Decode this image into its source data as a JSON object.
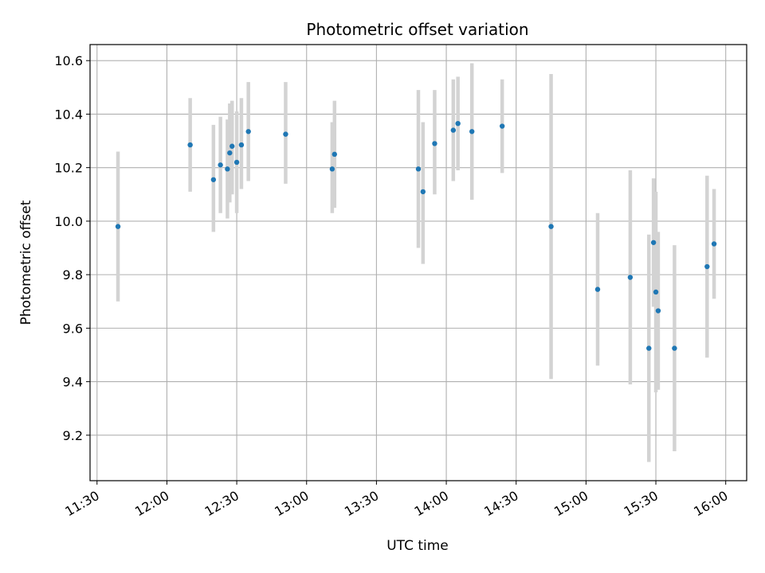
{
  "chart_data": {
    "type": "scatter",
    "title": "Photometric offset variation",
    "xlabel": "UTC time",
    "ylabel": "Photometric offset",
    "xlim": [
      "11:27",
      "16:09"
    ],
    "ylim": [
      9.03,
      10.66
    ],
    "x_ticks": [
      "11:30",
      "12:00",
      "12:30",
      "13:00",
      "13:30",
      "14:00",
      "14:30",
      "15:00",
      "15:30",
      "16:00"
    ],
    "y_ticks": [
      9.2,
      9.4,
      9.6,
      9.8,
      10.0,
      10.2,
      10.4,
      10.6
    ],
    "grid": true,
    "colors": {
      "marker": "#1f77b4",
      "errorbar": "#d3d3d3",
      "grid": "#b0b0b0"
    },
    "points": [
      {
        "x": "11:39",
        "y": 9.98,
        "ylow": 9.7,
        "yhigh": 10.26
      },
      {
        "x": "12:10",
        "y": 10.285,
        "ylow": 10.11,
        "yhigh": 10.46
      },
      {
        "x": "12:20",
        "y": 10.155,
        "ylow": 9.96,
        "yhigh": 10.36
      },
      {
        "x": "12:23",
        "y": 10.21,
        "ylow": 10.03,
        "yhigh": 10.39
      },
      {
        "x": "12:26",
        "y": 10.195,
        "ylow": 10.01,
        "yhigh": 10.38
      },
      {
        "x": "12:27",
        "y": 10.255,
        "ylow": 10.07,
        "yhigh": 10.44
      },
      {
        "x": "12:28",
        "y": 10.28,
        "ylow": 10.1,
        "yhigh": 10.45
      },
      {
        "x": "12:30",
        "y": 10.22,
        "ylow": 10.03,
        "yhigh": 10.41
      },
      {
        "x": "12:32",
        "y": 10.285,
        "ylow": 10.12,
        "yhigh": 10.46
      },
      {
        "x": "12:35",
        "y": 10.335,
        "ylow": 10.15,
        "yhigh": 10.52
      },
      {
        "x": "12:51",
        "y": 10.325,
        "ylow": 10.14,
        "yhigh": 10.52
      },
      {
        "x": "13:11",
        "y": 10.195,
        "ylow": 10.03,
        "yhigh": 10.37
      },
      {
        "x": "13:12",
        "y": 10.25,
        "ylow": 10.05,
        "yhigh": 10.45
      },
      {
        "x": "13:48",
        "y": 10.195,
        "ylow": 9.9,
        "yhigh": 10.49
      },
      {
        "x": "13:50",
        "y": 10.11,
        "ylow": 9.84,
        "yhigh": 10.37
      },
      {
        "x": "13:55",
        "y": 10.29,
        "ylow": 10.1,
        "yhigh": 10.49
      },
      {
        "x": "14:03",
        "y": 10.34,
        "ylow": 10.15,
        "yhigh": 10.53
      },
      {
        "x": "14:05",
        "y": 10.365,
        "ylow": 10.19,
        "yhigh": 10.54
      },
      {
        "x": "14:11",
        "y": 10.335,
        "ylow": 10.08,
        "yhigh": 10.59
      },
      {
        "x": "14:24",
        "y": 10.355,
        "ylow": 10.18,
        "yhigh": 10.53
      },
      {
        "x": "14:45",
        "y": 9.98,
        "ylow": 9.41,
        "yhigh": 10.55
      },
      {
        "x": "15:05",
        "y": 9.745,
        "ylow": 9.46,
        "yhigh": 10.03
      },
      {
        "x": "15:19",
        "y": 9.79,
        "ylow": 9.39,
        "yhigh": 10.19
      },
      {
        "x": "15:27",
        "y": 9.525,
        "ylow": 9.1,
        "yhigh": 9.95
      },
      {
        "x": "15:29",
        "y": 9.92,
        "ylow": 9.68,
        "yhigh": 10.16
      },
      {
        "x": "15:30",
        "y": 9.735,
        "ylow": 9.36,
        "yhigh": 10.11
      },
      {
        "x": "15:31",
        "y": 9.665,
        "ylow": 9.37,
        "yhigh": 9.96
      },
      {
        "x": "15:38",
        "y": 9.525,
        "ylow": 9.14,
        "yhigh": 9.91
      },
      {
        "x": "15:52",
        "y": 9.83,
        "ylow": 9.49,
        "yhigh": 10.17
      },
      {
        "x": "15:55",
        "y": 9.915,
        "ylow": 9.71,
        "yhigh": 10.12
      }
    ]
  }
}
